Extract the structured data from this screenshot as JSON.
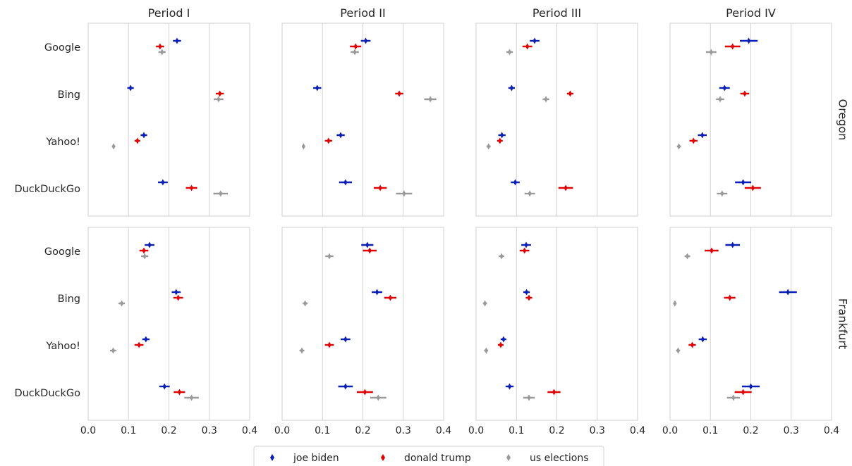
{
  "chart_data": {
    "type": "scatter",
    "columns": [
      "Period I",
      "Period II",
      "Period III",
      "Period IV"
    ],
    "rows": [
      "Oregon",
      "Frankfurt"
    ],
    "categories": [
      "Google",
      "Bing",
      "Yahoo!",
      "DuckDuckGo"
    ],
    "xlim": [
      0.0,
      0.4
    ],
    "xticks": [
      "0.0",
      "0.1",
      "0.2",
      "0.3",
      "0.4"
    ],
    "grid": true,
    "legend_position": "bottom-center",
    "series": [
      {
        "name": "joe biden",
        "color": "#0a1fb5"
      },
      {
        "name": "donald trump",
        "color": "#e00000"
      },
      {
        "name": "us elections",
        "color": "#9a9a9a"
      }
    ],
    "panels": [
      {
        "row": "Oregon",
        "column": "Period I",
        "values": {
          "joe biden": [
            [
              0.22,
              0.01
            ],
            [
              0.105,
              0.008
            ],
            [
              0.138,
              0.008
            ],
            [
              0.185,
              0.012
            ]
          ],
          "donald trump": [
            [
              0.178,
              0.01
            ],
            [
              0.326,
              0.01
            ],
            [
              0.122,
              0.007
            ],
            [
              0.256,
              0.014
            ]
          ],
          "us elections": [
            [
              0.183,
              0.009
            ],
            [
              0.323,
              0.012
            ],
            [
              0.063,
              0.004
            ],
            [
              0.328,
              0.018
            ]
          ]
        }
      },
      {
        "row": "Oregon",
        "column": "Period II",
        "values": {
          "joe biden": [
            [
              0.207,
              0.012
            ],
            [
              0.087,
              0.01
            ],
            [
              0.145,
              0.01
            ],
            [
              0.157,
              0.016
            ]
          ],
          "donald trump": [
            [
              0.182,
              0.014
            ],
            [
              0.29,
              0.01
            ],
            [
              0.115,
              0.009
            ],
            [
              0.243,
              0.016
            ]
          ],
          "us elections": [
            [
              0.18,
              0.01
            ],
            [
              0.367,
              0.015
            ],
            [
              0.053,
              0.004
            ],
            [
              0.302,
              0.02
            ]
          ]
        }
      },
      {
        "row": "Oregon",
        "column": "Period III",
        "values": {
          "joe biden": [
            [
              0.145,
              0.012
            ],
            [
              0.088,
              0.008
            ],
            [
              0.064,
              0.009
            ],
            [
              0.097,
              0.011
            ]
          ],
          "donald trump": [
            [
              0.127,
              0.012
            ],
            [
              0.233,
              0.008
            ],
            [
              0.059,
              0.007
            ],
            [
              0.222,
              0.018
            ]
          ],
          "us elections": [
            [
              0.083,
              0.008
            ],
            [
              0.173,
              0.008
            ],
            [
              0.031,
              0.005
            ],
            [
              0.133,
              0.013
            ]
          ]
        }
      },
      {
        "row": "Oregon",
        "column": "Period IV",
        "values": {
          "joe biden": [
            [
              0.195,
              0.022
            ],
            [
              0.135,
              0.013
            ],
            [
              0.08,
              0.011
            ],
            [
              0.181,
              0.02
            ]
          ],
          "donald trump": [
            [
              0.155,
              0.019
            ],
            [
              0.185,
              0.011
            ],
            [
              0.058,
              0.01
            ],
            [
              0.205,
              0.02
            ]
          ],
          "us elections": [
            [
              0.102,
              0.013
            ],
            [
              0.124,
              0.01
            ],
            [
              0.022,
              0.005
            ],
            [
              0.129,
              0.013
            ]
          ]
        }
      },
      {
        "row": "Frankfurt",
        "column": "Period I",
        "values": {
          "joe biden": [
            [
              0.152,
              0.012
            ],
            [
              0.218,
              0.011
            ],
            [
              0.143,
              0.009
            ],
            [
              0.189,
              0.013
            ]
          ],
          "donald trump": [
            [
              0.138,
              0.011
            ],
            [
              0.223,
              0.012
            ],
            [
              0.126,
              0.011
            ],
            [
              0.226,
              0.014
            ]
          ],
          "us elections": [
            [
              0.14,
              0.009
            ],
            [
              0.083,
              0.008
            ],
            [
              0.062,
              0.008
            ],
            [
              0.256,
              0.018
            ]
          ]
        }
      },
      {
        "row": "Frankfurt",
        "column": "Period II",
        "values": {
          "joe biden": [
            [
              0.211,
              0.015
            ],
            [
              0.235,
              0.013
            ],
            [
              0.157,
              0.012
            ],
            [
              0.157,
              0.018
            ]
          ],
          "donald trump": [
            [
              0.217,
              0.017
            ],
            [
              0.268,
              0.015
            ],
            [
              0.117,
              0.011
            ],
            [
              0.205,
              0.02
            ]
          ],
          "us elections": [
            [
              0.117,
              0.01
            ],
            [
              0.057,
              0.006
            ],
            [
              0.049,
              0.006
            ],
            [
              0.238,
              0.02
            ]
          ]
        }
      },
      {
        "row": "Frankfurt",
        "column": "Period III",
        "values": {
          "joe biden": [
            [
              0.124,
              0.012
            ],
            [
              0.125,
              0.008
            ],
            [
              0.068,
              0.007
            ],
            [
              0.083,
              0.01
            ]
          ],
          "donald trump": [
            [
              0.12,
              0.012
            ],
            [
              0.131,
              0.008
            ],
            [
              0.061,
              0.007
            ],
            [
              0.193,
              0.016
            ]
          ],
          "us elections": [
            [
              0.063,
              0.007
            ],
            [
              0.022,
              0.005
            ],
            [
              0.025,
              0.005
            ],
            [
              0.131,
              0.014
            ]
          ]
        }
      },
      {
        "row": "Frankfurt",
        "column": "Period IV",
        "values": {
          "joe biden": [
            [
              0.155,
              0.018
            ],
            [
              0.292,
              0.022
            ],
            [
              0.081,
              0.01
            ],
            [
              0.2,
              0.022
            ]
          ],
          "donald trump": [
            [
              0.103,
              0.017
            ],
            [
              0.148,
              0.014
            ],
            [
              0.055,
              0.009
            ],
            [
              0.181,
              0.021
            ]
          ],
          "us elections": [
            [
              0.043,
              0.007
            ],
            [
              0.012,
              0.004
            ],
            [
              0.02,
              0.005
            ],
            [
              0.157,
              0.016
            ]
          ]
        }
      }
    ]
  }
}
